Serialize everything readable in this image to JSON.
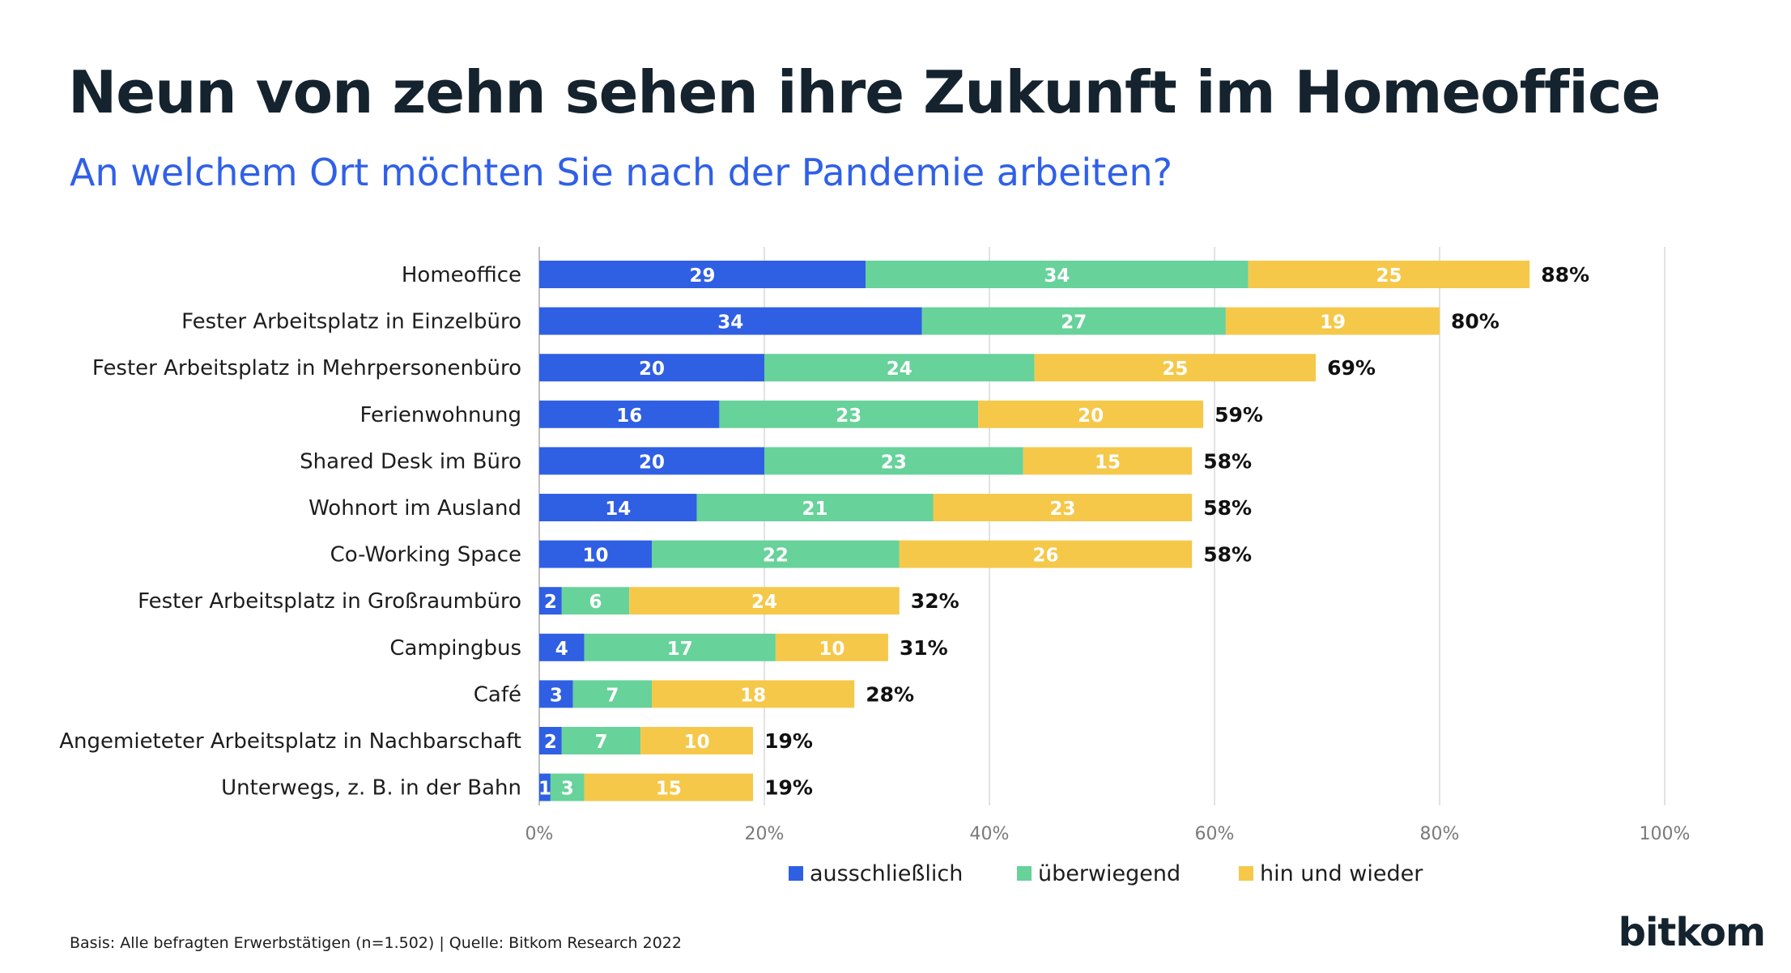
{
  "header": {
    "title": "Neun von zehn sehen ihre Zukunft im Homeoffice",
    "subtitle": "An welchem Ort möchten Sie nach der Pandemie arbeiten?"
  },
  "footer": {
    "source": "Basis: Alle befragten Erwerbstätigen (n=1.502) | Quelle: Bitkom Research 2022",
    "logo": "bitkom"
  },
  "chart_data": {
    "type": "bar",
    "orientation": "horizontal",
    "stacked": true,
    "title": "",
    "xlabel": "",
    "ylabel": "",
    "xlim": [
      0,
      100
    ],
    "x_ticks": [
      "0%",
      "20%",
      "40%",
      "60%",
      "80%",
      "100%"
    ],
    "grid": true,
    "legend_position": "bottom",
    "categories": [
      "Homeoffice",
      "Fester Arbeitsplatz in Einzelbüro",
      "Fester Arbeitsplatz in Mehrpersonenbüro",
      "Ferienwohnung",
      "Shared Desk im Büro",
      "Wohnort im Ausland",
      "Co-Working Space",
      "Fester Arbeitsplatz in Großraumbüro",
      "Campingbus",
      "Café",
      "Angemieteter Arbeitsplatz in Nachbarschaft",
      "Unterwegs, z. B. in der Bahn"
    ],
    "series": [
      {
        "name": "ausschließlich",
        "color": "#2f5fe3",
        "values": [
          29,
          34,
          20,
          16,
          20,
          14,
          10,
          2,
          4,
          3,
          2,
          1
        ]
      },
      {
        "name": "überwiegend",
        "color": "#67d29a",
        "values": [
          34,
          27,
          24,
          23,
          23,
          21,
          22,
          6,
          17,
          7,
          7,
          3
        ]
      },
      {
        "name": "hin und wieder",
        "color": "#f5c84a",
        "values": [
          25,
          19,
          25,
          20,
          15,
          23,
          26,
          24,
          10,
          18,
          10,
          15
        ]
      }
    ],
    "totals": [
      "88%",
      "80%",
      "69%",
      "59%",
      "58%",
      "58%",
      "58%",
      "32%",
      "31%",
      "28%",
      "19%",
      "19%"
    ]
  }
}
